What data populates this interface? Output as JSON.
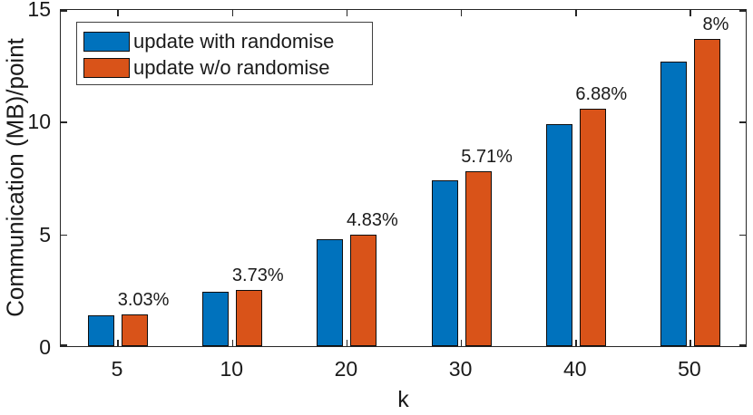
{
  "chart_data": {
    "type": "bar",
    "title": "",
    "xlabel": "k",
    "ylabel": "Communication (MB)/point",
    "categories": [
      "5",
      "10",
      "20",
      "30",
      "40",
      "50"
    ],
    "series": [
      {
        "name": "update with randomise",
        "color": "#0072BD",
        "values": [
          1.35,
          2.42,
          4.73,
          7.34,
          9.87,
          12.63
        ]
      },
      {
        "name": "update w/o randomise",
        "color": "#D95319",
        "values": [
          1.39,
          2.51,
          4.96,
          7.76,
          10.55,
          13.64
        ]
      }
    ],
    "bar_labels": [
      "3.03%",
      "3.73%",
      "4.83%",
      "5.71%",
      "6.88%",
      "8%"
    ],
    "ylim": [
      0,
      15
    ],
    "yticks": [
      0,
      5,
      10,
      15
    ],
    "legend_position": "top-left",
    "grid": false
  },
  "colors": {
    "axis": "#262626",
    "bar_edge": "#0d0d0d",
    "background": "#ffffff"
  }
}
